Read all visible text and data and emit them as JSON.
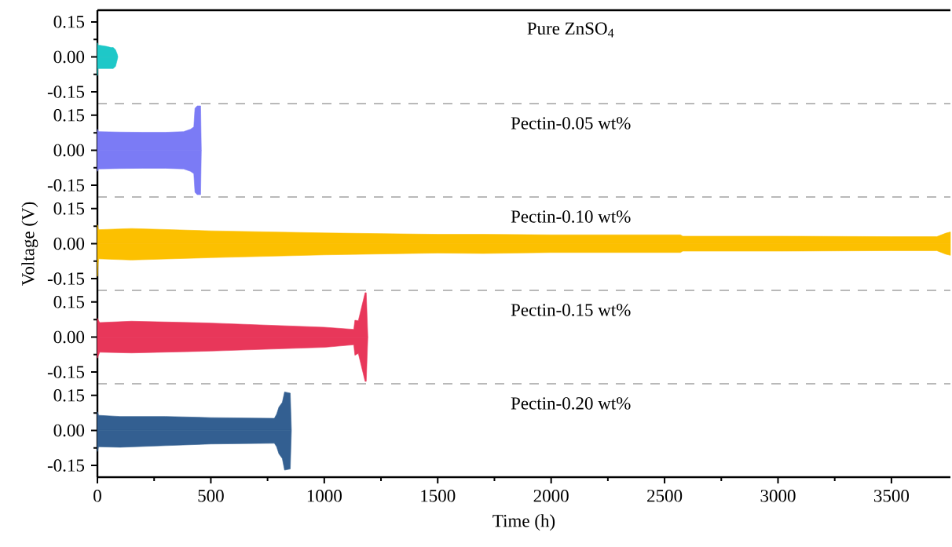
{
  "chart_data": [
    {
      "type": "area",
      "xlim": [
        0,
        3760
      ],
      "ylim": [
        -0.2,
        0.2
      ],
      "yticks": [
        {
          "value": -0.15,
          "label": "-0.15"
        },
        {
          "value": 0,
          "label": "0.00"
        },
        {
          "value": 0.15,
          "label": "0.15"
        }
      ],
      "tick_labels": "y",
      "series": [
        {
          "name": "Pure ZnSO$_{4}$",
          "color": "#1ec8c8",
          "x": [
            0,
            2,
            10,
            40,
            60,
            70,
            80,
            88,
            90
          ],
          "values": [
            0.06,
            0.05,
            0.05,
            0.045,
            0.04,
            0.04,
            0.03,
            0.01,
            0
          ]
        },
        {
          "color": "#1ec8c8",
          "x": [
            0,
            2,
            10,
            40,
            60,
            70,
            80,
            88,
            90
          ],
          "values": [
            -0.08,
            -0.05,
            -0.05,
            -0.05,
            -0.05,
            -0.05,
            -0.04,
            -0.01,
            0
          ]
        }
      ]
    },
    {
      "type": "area",
      "xlim": [
        0,
        3760
      ],
      "ylim": [
        -0.2,
        0.2
      ],
      "yticks": [
        {
          "value": -0.15,
          "label": "-0.15"
        },
        {
          "value": 0,
          "label": "0.00"
        },
        {
          "value": 0.15,
          "label": "0.15"
        }
      ],
      "tick_labels": "y",
      "series": [
        {
          "name": "Pectin-0.05 wt%",
          "color": "#7b7bf5",
          "x": [
            0,
            5,
            100,
            200,
            300,
            380,
            410,
            425,
            430,
            440,
            455,
            458
          ],
          "values": [
            0.09,
            0.08,
            0.078,
            0.077,
            0.077,
            0.08,
            0.09,
            0.1,
            0.18,
            0.19,
            0.19,
            0
          ]
        },
        {
          "color": "#7b7bf5",
          "x": [
            0,
            5,
            100,
            200,
            300,
            380,
            410,
            425,
            430,
            440,
            455,
            458
          ],
          "values": [
            -0.09,
            -0.08,
            -0.078,
            -0.077,
            -0.077,
            -0.08,
            -0.09,
            -0.1,
            -0.18,
            -0.19,
            -0.19,
            0
          ]
        }
      ]
    },
    {
      "type": "area",
      "xlim": [
        0,
        3760
      ],
      "ylim": [
        -0.2,
        0.2
      ],
      "yticks": [
        {
          "value": -0.15,
          "label": "-0.15"
        },
        {
          "value": 0,
          "label": "0.00"
        },
        {
          "value": 0.15,
          "label": "0.15"
        }
      ],
      "tick_labels": "y",
      "ylabel": "Voltage (V)",
      "series": [
        {
          "name": "Pectin-0.10 wt%",
          "color": "#fcc000",
          "x": [
            0,
            5,
            150,
            500,
            1000,
            1500,
            1700,
            2000,
            2570,
            2580,
            3000,
            3500,
            3700,
            3740,
            3760
          ],
          "values": [
            0.08,
            0.06,
            0.065,
            0.055,
            0.046,
            0.04,
            0.04,
            0.038,
            0.038,
            0.032,
            0.032,
            0.03,
            0.03,
            0.045,
            0.05
          ]
        },
        {
          "color": "#fcc000",
          "x": [
            0,
            5,
            150,
            500,
            1000,
            1500,
            1700,
            2000,
            2570,
            2580,
            3000,
            3500,
            3700,
            3740,
            3760
          ],
          "values": [
            -0.14,
            -0.065,
            -0.07,
            -0.06,
            -0.048,
            -0.04,
            -0.042,
            -0.038,
            -0.038,
            -0.032,
            -0.032,
            -0.03,
            -0.03,
            -0.045,
            -0.05
          ]
        }
      ]
    },
    {
      "type": "area",
      "xlim": [
        0,
        3760
      ],
      "ylim": [
        -0.2,
        0.2
      ],
      "yticks": [
        {
          "value": -0.15,
          "label": "-0.15"
        },
        {
          "value": 0,
          "label": "0.00"
        },
        {
          "value": 0.15,
          "label": "0.15"
        }
      ],
      "tick_labels": "y",
      "series": [
        {
          "name": "Pectin-0.15 wt%",
          "color": "#e8375a",
          "x": [
            0,
            10,
            150,
            500,
            1000,
            1130,
            1135,
            1150,
            1180,
            1185,
            1192
          ],
          "values": [
            0.08,
            0.062,
            0.068,
            0.06,
            0.042,
            0.033,
            0.072,
            0.07,
            0.19,
            0.19,
            0
          ]
        },
        {
          "color": "#e8375a",
          "x": [
            0,
            10,
            150,
            500,
            1000,
            1130,
            1135,
            1150,
            1180,
            1185,
            1192
          ],
          "values": [
            -0.09,
            -0.065,
            -0.068,
            -0.06,
            -0.044,
            -0.033,
            -0.078,
            -0.07,
            -0.19,
            -0.19,
            0
          ]
        }
      ]
    },
    {
      "type": "area",
      "xlim": [
        0,
        3760
      ],
      "ylim": [
        -0.2,
        0.2
      ],
      "yticks": [
        {
          "value": -0.15,
          "label": "-0.15"
        },
        {
          "value": 0,
          "label": "0.00"
        },
        {
          "value": 0.15,
          "label": "0.15"
        }
      ],
      "xticks": [
        0,
        500,
        1000,
        1500,
        2000,
        2500,
        3000,
        3500
      ],
      "xlabel": "Time (h)",
      "series": [
        {
          "name": "Pectin-0.20 wt%",
          "color": "#335f91",
          "x": [
            0,
            5,
            100,
            300,
            500,
            780,
            790,
            800,
            815,
            825,
            850,
            855
          ],
          "values": [
            0.08,
            0.065,
            0.06,
            0.06,
            0.055,
            0.052,
            0.07,
            0.1,
            0.12,
            0.165,
            0.16,
            0
          ]
        },
        {
          "color": "#335f91",
          "x": [
            0,
            5,
            100,
            300,
            500,
            780,
            790,
            800,
            815,
            825,
            850,
            855
          ],
          "values": [
            -0.09,
            -0.07,
            -0.072,
            -0.065,
            -0.058,
            -0.055,
            -0.07,
            -0.1,
            -0.12,
            -0.17,
            -0.165,
            0
          ]
        }
      ]
    }
  ]
}
